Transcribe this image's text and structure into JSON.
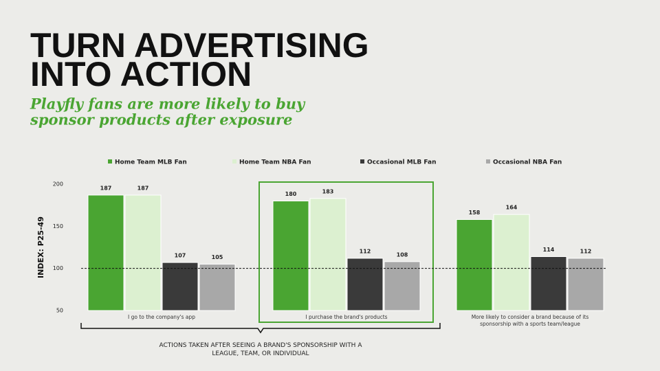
{
  "title": [
    "TURN ADVERTISING",
    "INTO ACTION"
  ],
  "subtitle": [
    "Playfly fans are more likely to buy",
    "sponsor products after exposure"
  ],
  "chart_data": {
    "type": "bar",
    "categories": [
      "I go to the company's app",
      "I purchase the brand's products",
      "More likely to consider a brand because of its sponsorship with a sports team/league"
    ],
    "series": [
      {
        "name": "Home Team MLB Fan",
        "color": "#4aa532",
        "values": [
          187,
          180,
          158
        ]
      },
      {
        "name": "Home Team NBA Fan",
        "color": "#dcf0d0",
        "values": [
          187,
          183,
          164
        ]
      },
      {
        "name": "Occasional MLB Fan",
        "color": "#3a3a3a",
        "values": [
          107,
          112,
          114
        ]
      },
      {
        "name": "Occasional NBA Fan",
        "color": "#a8a8a8",
        "values": [
          105,
          108,
          112
        ]
      }
    ],
    "ylabel": "INDEX: P25-49",
    "ylim": [
      50,
      200
    ],
    "yticks": [
      50,
      100,
      150,
      200
    ],
    "reference_line": 100,
    "x_annotation": "ACTIONS TAKEN AFTER SEEING A BRAND'S SPONSORSHIP WITH A LEAGUE, TEAM, OR INDIVIDUAL"
  }
}
